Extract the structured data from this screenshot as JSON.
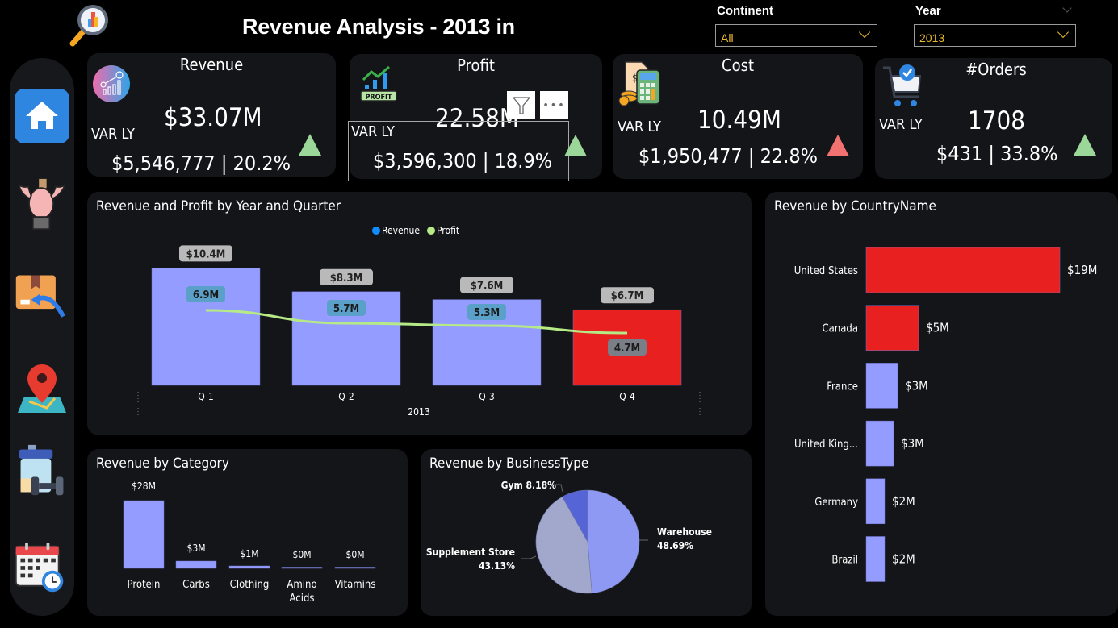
{
  "header": {
    "title": "Revenue Analysis - 2013 in",
    "logo_icon": "magnifier-chart-icon"
  },
  "filters": {
    "continent": {
      "label": "Continent",
      "value": "All"
    },
    "year": {
      "label": "Year",
      "value": "2013"
    }
  },
  "sidebar": {
    "items": [
      {
        "name": "home",
        "icon": "home-icon",
        "active": true
      },
      {
        "name": "customers",
        "icon": "bodybuilder-icon"
      },
      {
        "name": "returns",
        "icon": "package-return-icon"
      },
      {
        "name": "geography",
        "icon": "map-pin-icon"
      },
      {
        "name": "products",
        "icon": "supplement-dumbbell-icon"
      },
      {
        "name": "calendar",
        "icon": "calendar-clock-icon"
      }
    ]
  },
  "kpis": {
    "revenue": {
      "title": "Revenue",
      "value": "$33.07M",
      "var_label": "VAR LY",
      "var": "$5,546,777 | 20.2%",
      "trend": "up",
      "color": "#9bd799"
    },
    "profit": {
      "title": "Profit",
      "value": "22.58M",
      "var_label": "VAR LY",
      "var": "$3,596,300 | 18.9%",
      "trend": "up",
      "color": "#9bd799"
    },
    "cost": {
      "title": "Cost",
      "value": "10.49M",
      "var_label": "VAR LY",
      "var": "$1,950,477 | 22.8%",
      "trend": "up",
      "color": "#f27171"
    },
    "orders": {
      "title": "#Orders",
      "value": "1708",
      "var_label": "VAR LY",
      "var": "$431 | 33.8%",
      "trend": "up",
      "color": "#9bd799"
    }
  },
  "visual_header": {
    "filter_icon": "filter-icon",
    "more_icon": "more-options-icon"
  },
  "chart_data": [
    {
      "id": "quarter",
      "type": "bar",
      "title": "Revenue and Profit by Year and Quarter",
      "categories": [
        "Q-1",
        "Q-2",
        "Q-3",
        "Q-4"
      ],
      "group_label": "2013",
      "legend": [
        "Revenue",
        "Profit"
      ],
      "legend_position": "top-center",
      "series": [
        {
          "name": "Revenue",
          "kind": "bar",
          "values": [
            10.4,
            8.3,
            7.6,
            6.7
          ],
          "labels": [
            "$10.4M",
            "$8.3M",
            "$7.6M",
            "$6.7M"
          ],
          "colors": [
            "#959cff",
            "#959cff",
            "#959cff",
            "#e82020"
          ],
          "legend_color": "#118dff"
        },
        {
          "name": "Profit",
          "kind": "line",
          "values": [
            6.9,
            5.7,
            5.3,
            4.7
          ],
          "labels": [
            "6.9M",
            "5.7M",
            "5.3M",
            "4.7M"
          ],
          "color": "#b6ea86"
        }
      ],
      "unit": "M"
    },
    {
      "id": "country",
      "type": "bar",
      "orientation": "horizontal",
      "title": "Revenue by CountryName",
      "categories": [
        "United States",
        "Canada",
        "France",
        "United King...",
        "Germany",
        "Brazil"
      ],
      "values": [
        19,
        5,
        3,
        3,
        2,
        2
      ],
      "labels": [
        "$19M",
        "$5M",
        "$3M",
        "$3M",
        "$2M",
        "$2M"
      ],
      "colors": [
        "#e82020",
        "#e82020",
        "#959cff",
        "#959cff",
        "#959cff",
        "#959cff"
      ]
    },
    {
      "id": "category",
      "type": "bar",
      "title": "Revenue by Category",
      "categories": [
        "Protein",
        "Carbs",
        "Clothing",
        "Amino Acids",
        "Vitamins"
      ],
      "values": [
        28,
        3,
        1,
        0.2,
        0.2
      ],
      "labels": [
        "$28M",
        "$3M",
        "$1M",
        "$0M",
        "$0M"
      ],
      "color": "#959cff"
    },
    {
      "id": "business",
      "type": "pie",
      "title": "Revenue by BusinessType",
      "slices": [
        {
          "name": "Warehouse",
          "value": 48.69,
          "label": "48.69%",
          "color": "#8e99f3"
        },
        {
          "name": "Supplement Store",
          "value": 43.13,
          "label": "43.13%",
          "color": "#a2a8cc"
        },
        {
          "name": "Gym",
          "value": 8.18,
          "label": "8.18%",
          "color": "#5665d6"
        }
      ]
    }
  ]
}
